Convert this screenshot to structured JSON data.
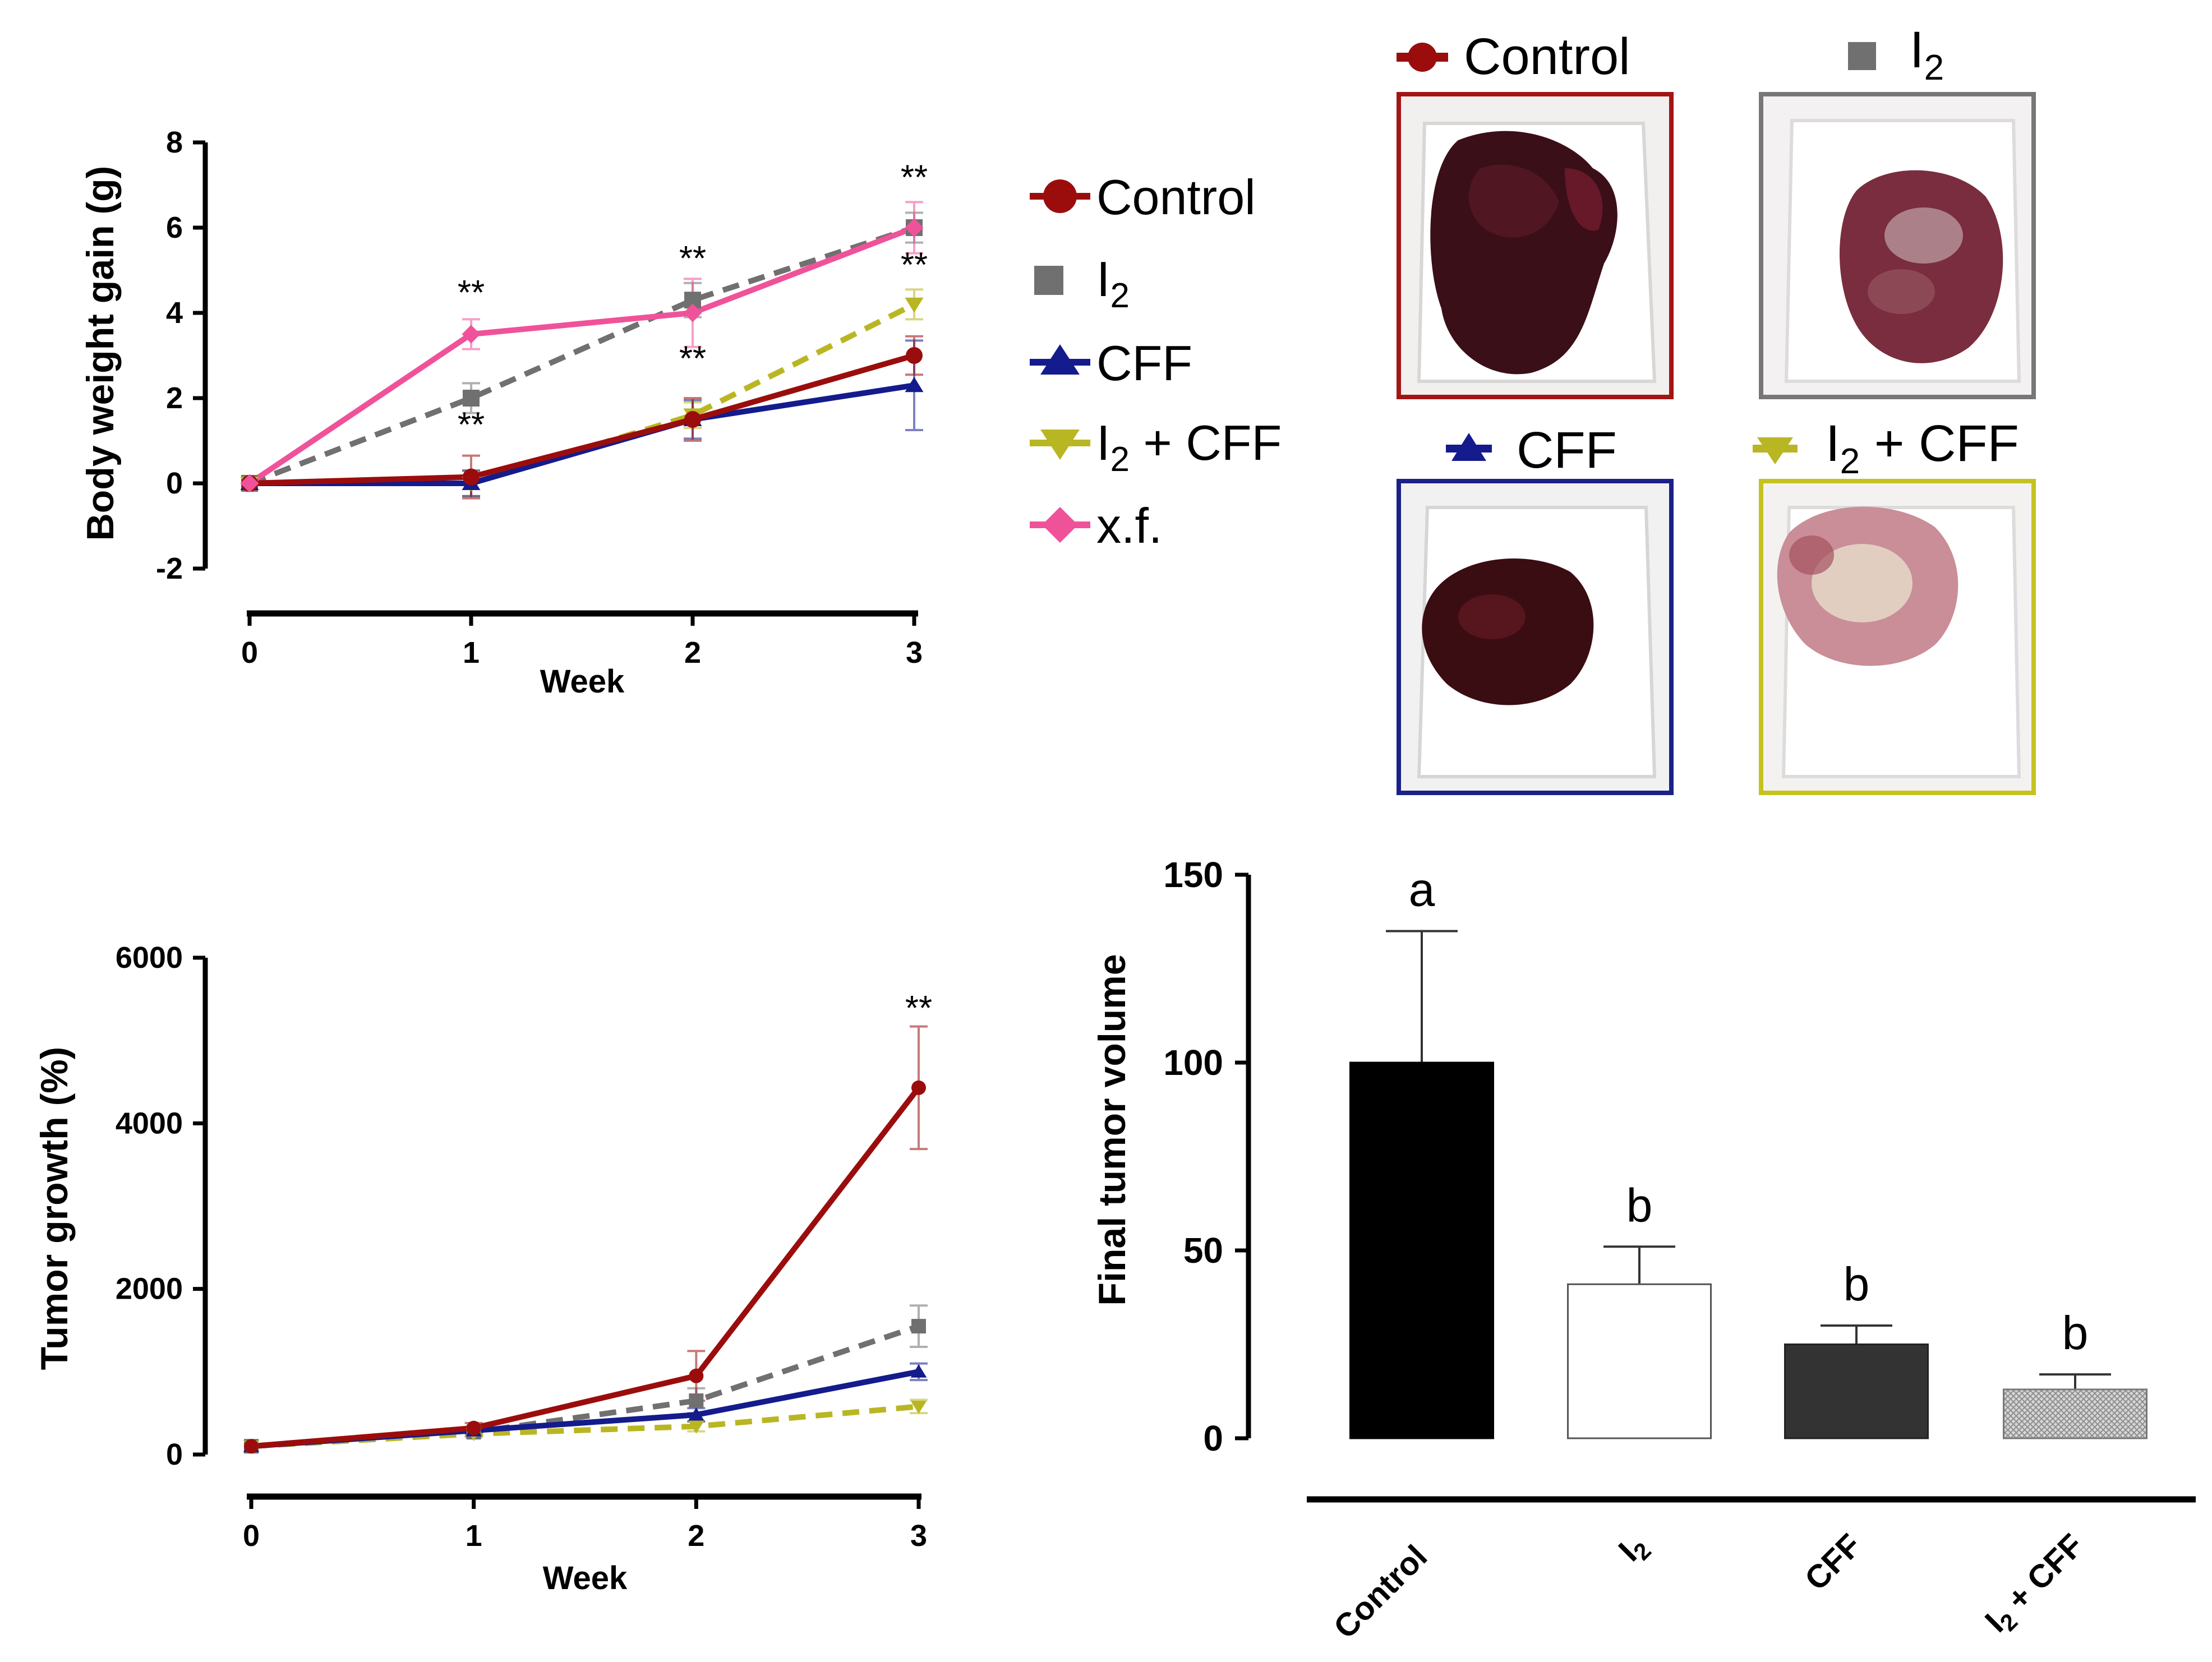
{
  "colors": {
    "control": "#9b0d0d",
    "i2": "#707070",
    "cff": "#141b8c",
    "i2cff": "#b9b624",
    "xf": "#f0529a",
    "axis": "#000000"
  },
  "icons": {
    "control": "circle-marker-icon",
    "i2": "square-marker-icon",
    "cff": "triangle-up-marker-icon",
    "i2cff": "triangle-down-marker-icon",
    "xf": "diamond-marker-icon"
  },
  "legend": {
    "control": "Control",
    "i2_base": "I",
    "i2_sub": "2",
    "cff": "CFF",
    "i2cff_base": "I",
    "i2cff_sub": "2",
    "i2cff_rest": " + CFF",
    "xf": "x.f."
  },
  "photos": {
    "control": "Control",
    "i2_base": "I",
    "i2_sub": "2",
    "cff": "CFF",
    "i2cff_base": "I",
    "i2cff_sub": "2",
    "i2cff_rest": " + CFF"
  },
  "chart_data": [
    {
      "id": "body-weight",
      "type": "line",
      "title": "",
      "xlabel": "Week",
      "ylabel": "Body weight gain (g)",
      "x": [
        0,
        1,
        2,
        3
      ],
      "xticks": [
        "0",
        "1",
        "2",
        "3"
      ],
      "yticks": [
        "-2",
        "0",
        "2",
        "4",
        "6",
        "8"
      ],
      "ylim": [
        -2,
        8
      ],
      "series": [
        {
          "key": "i2",
          "name": "I2",
          "dashed": true,
          "values": [
            0,
            2.0,
            4.3,
            6.0
          ],
          "err": [
            0,
            0.35,
            0.4,
            0.35
          ]
        },
        {
          "key": "i2cff",
          "name": "I2 + CFF",
          "dashed": true,
          "values": [
            0,
            0,
            1.6,
            4.2
          ],
          "err": [
            0,
            0.3,
            0.3,
            0.35
          ]
        },
        {
          "key": "cff",
          "name": "CFF",
          "dashed": false,
          "values": [
            0,
            0,
            1.5,
            2.3
          ],
          "err": [
            0,
            0.3,
            0.45,
            1.05
          ]
        },
        {
          "key": "control",
          "name": "Control",
          "dashed": false,
          "values": [
            0,
            0.15,
            1.5,
            3.0
          ],
          "err": [
            0,
            0.5,
            0.5,
            0.45
          ]
        },
        {
          "key": "xf",
          "name": "x.f.",
          "dashed": false,
          "values": [
            0,
            3.5,
            4.0,
            6.0
          ],
          "err": [
            0,
            0.35,
            0.8,
            0.6
          ]
        }
      ],
      "annotations": [
        {
          "text": "**",
          "x": 1,
          "y": 4.2
        },
        {
          "text": "**",
          "x": 1,
          "y": 1.1
        },
        {
          "text": "**",
          "x": 2,
          "y": 5.0
        },
        {
          "text": "**",
          "x": 2,
          "y": 2.65
        },
        {
          "text": "**",
          "x": 3,
          "y": 6.9
        },
        {
          "text": "**",
          "x": 3,
          "y": 4.85
        }
      ]
    },
    {
      "id": "tumor-growth",
      "type": "line",
      "title": "",
      "xlabel": "Week",
      "ylabel": "Tumor growth (%)",
      "x": [
        0,
        1,
        2,
        3
      ],
      "xticks": [
        "0",
        "1",
        "2",
        "3"
      ],
      "yticks": [
        "0",
        "2000",
        "4000",
        "6000"
      ],
      "ylim": [
        0,
        6000
      ],
      "series": [
        {
          "key": "i2",
          "name": "I2",
          "dashed": true,
          "values": [
            100,
            270,
            650,
            1550
          ],
          "err": [
            0,
            50,
            150,
            250
          ]
        },
        {
          "key": "i2cff",
          "name": "I2 + CFF",
          "dashed": true,
          "values": [
            100,
            250,
            340,
            580
          ],
          "err": [
            0,
            40,
            60,
            80
          ]
        },
        {
          "key": "cff",
          "name": "CFF",
          "dashed": false,
          "values": [
            100,
            290,
            480,
            1000
          ],
          "err": [
            0,
            40,
            80,
            100
          ]
        },
        {
          "key": "control",
          "name": "Control",
          "dashed": false,
          "values": [
            100,
            320,
            950,
            4430
          ],
          "err": [
            0,
            60,
            300,
            740
          ]
        }
      ],
      "annotations": [
        {
          "text": "**",
          "x": 3,
          "y": 5250
        }
      ]
    },
    {
      "id": "final-volume",
      "type": "bar",
      "title": "",
      "xlabel": "",
      "ylabel": "Final tumor volume",
      "categories": [
        "Control",
        "I2",
        "CFF",
        "I2 + CFF"
      ],
      "values": [
        100,
        41,
        25,
        13
      ],
      "err": [
        35,
        10,
        5,
        4
      ],
      "letters": [
        "a",
        "b",
        "b",
        "b"
      ],
      "yticks": [
        "0",
        "50",
        "100",
        "150"
      ],
      "ylim": [
        0,
        150
      ]
    }
  ]
}
